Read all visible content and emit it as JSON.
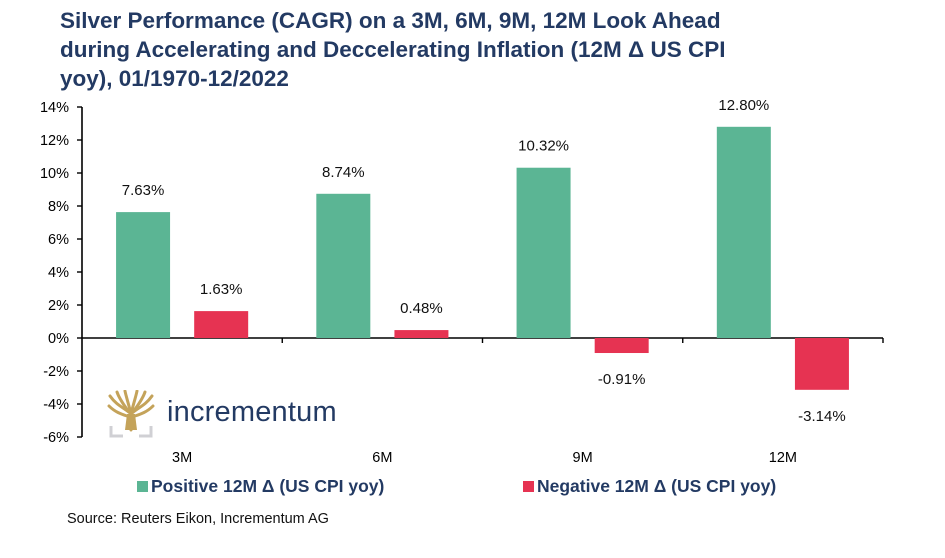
{
  "chart_data": {
    "type": "bar",
    "title": "Silver Performance (CAGR) on a 3M, 6M, 9M, 12M Look Ahead during Accelerating and Deccelerating Inflation (12M Δ US CPI yoy), 01/1970-12/2022",
    "title_lines": [
      "Silver Performance (CAGR) on a 3M, 6M, 9M, 12M Look Ahead",
      "during Accelerating and Deccelerating Inflation (12M Δ US CPI",
      "yoy), 01/1970-12/2022"
    ],
    "xlabel": "",
    "ylabel": "",
    "categories": [
      "3M",
      "6M",
      "9M",
      "12M"
    ],
    "series": [
      {
        "name": "Positive 12M Δ (US CPI yoy)",
        "color": "#5bb594",
        "values": [
          7.63,
          8.74,
          10.32,
          12.8
        ],
        "labels": [
          "7.63%",
          "8.74%",
          "10.32%",
          "12.80%"
        ]
      },
      {
        "name": "Negative 12M Δ (US CPI yoy)",
        "color": "#e63352",
        "values": [
          1.63,
          0.48,
          -0.91,
          -3.14
        ],
        "labels": [
          "1.63%",
          "0.48%",
          "-0.91%",
          "-3.14%"
        ]
      }
    ],
    "ylim": [
      -6,
      14
    ],
    "yticks": [
      14,
      12,
      10,
      8,
      6,
      4,
      2,
      0,
      -2,
      -4,
      -6
    ],
    "ytick_labels": [
      "14%",
      "12%",
      "10%",
      "8%",
      "6%",
      "4%",
      "2%",
      "0%",
      "-2%",
      "-4%",
      "-6%"
    ],
    "grid": false,
    "legend_position": "bottom",
    "source": "Source: Reuters Eikon, Incrementum AG"
  },
  "branding": {
    "logo_text": "incrementum",
    "logo_color": "#c4a35a",
    "text_color": "#233a63"
  }
}
